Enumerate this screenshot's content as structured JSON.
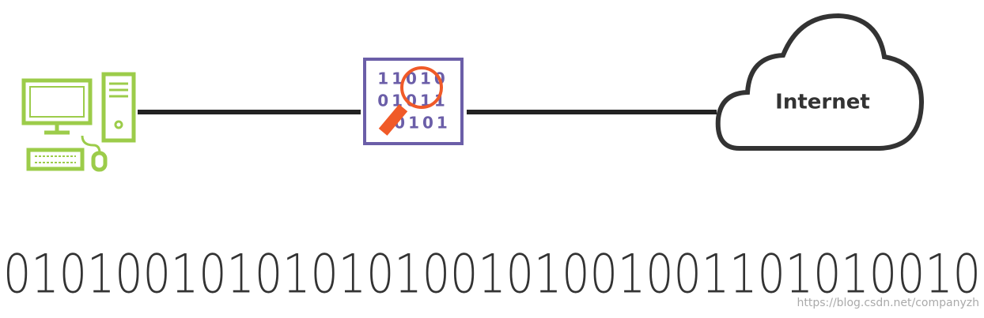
{
  "diagram": {
    "cloud_label": "Internet",
    "filter_digits": [
      "11010",
      "01011",
      "0101"
    ],
    "bitstream": "01010010101010100101001001101010010",
    "watermark": "https://blog.csdn.net/companyzh"
  }
}
